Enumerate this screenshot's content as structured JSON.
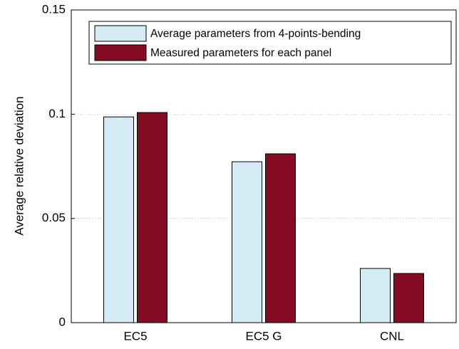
{
  "chart_data": {
    "type": "bar",
    "y_label": "Average relative deviation",
    "categories": [
      "EC5",
      "EC5 G",
      "CNL"
    ],
    "series": [
      {
        "name": "Average parameters from 4-points-bending",
        "color": "#d4ebf5",
        "values": [
          0.0987,
          0.0772,
          0.026
        ]
      },
      {
        "name": "Measured parameters for each panel",
        "color": "#850b22",
        "values": [
          0.1008,
          0.081,
          0.0236
        ]
      }
    ],
    "ylim": [
      0,
      0.15
    ],
    "yticks": [
      0,
      0.05,
      0.1,
      0.15
    ],
    "grid": true,
    "legend": "top-left"
  }
}
